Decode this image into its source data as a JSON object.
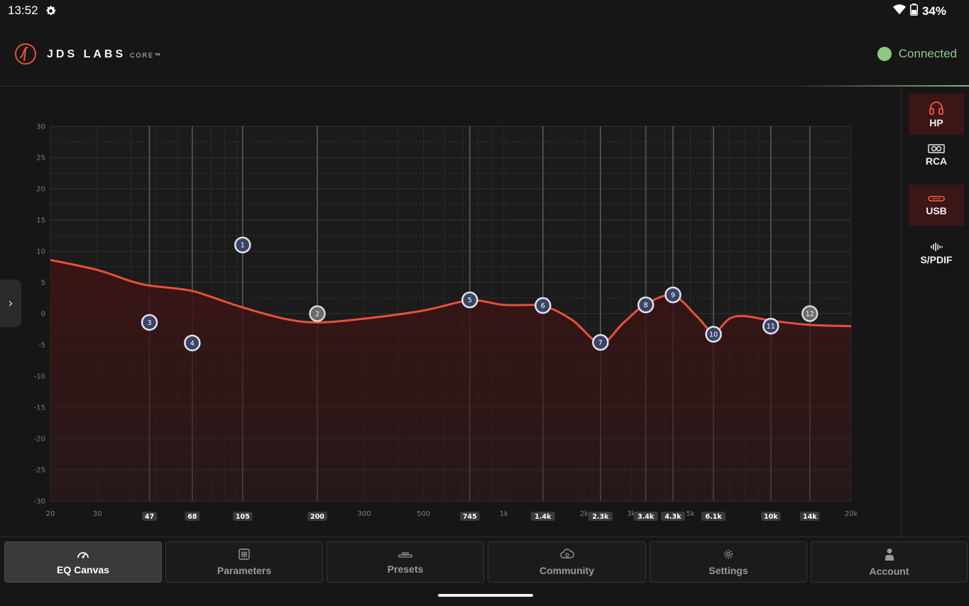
{
  "status_bar": {
    "time": "13:52",
    "battery": "34%",
    "icons": [
      "gear-icon",
      "wifi-icon",
      "battery-icon"
    ]
  },
  "header": {
    "brand": "JDS LABS",
    "product": "CORE™",
    "connection_status": "Connected",
    "colors": {
      "accent": "#e8503a",
      "connected": "#8bc97f"
    }
  },
  "outputs": [
    {
      "label": "HP",
      "icon": "headphones-icon",
      "active": true
    },
    {
      "label": "RCA",
      "icon": "rca-icon",
      "active": false
    },
    {
      "label": "USB",
      "icon": "usb-icon",
      "active": true
    },
    {
      "label": "S/PDIF",
      "icon": "spdif-icon",
      "active": false
    }
  ],
  "sidebar_toggle": {
    "label": "›",
    "icon": "chevron-right-icon"
  },
  "chart_data": {
    "type": "line",
    "title": "",
    "xlabel": "",
    "ylabel": "",
    "x_scale": "log",
    "xlim": [
      20,
      20000
    ],
    "ylim": [
      -30,
      30
    ],
    "grid": true,
    "x_ticks": [
      20,
      30,
      300,
      500,
      "1k",
      "2k",
      "3k",
      "5k",
      "20k"
    ],
    "y_ticks": [
      30,
      25,
      20,
      15,
      10,
      5,
      0,
      -5,
      -10,
      -15,
      -20,
      -25,
      -30
    ],
    "bands": [
      {
        "id": "1",
        "freq_label": "105",
        "freq": 105,
        "gain": 11,
        "enabled": true
      },
      {
        "id": "2",
        "freq_label": "200",
        "freq": 200,
        "gain": 0,
        "enabled": false
      },
      {
        "id": "3",
        "freq_label": "47",
        "freq": 47,
        "gain": -1.4,
        "enabled": true
      },
      {
        "id": "4",
        "freq_label": "68",
        "freq": 68,
        "gain": -4.7,
        "enabled": true
      },
      {
        "id": "5",
        "freq_label": "745",
        "freq": 745,
        "gain": 2.2,
        "enabled": true
      },
      {
        "id": "6",
        "freq_label": "1.4k",
        "freq": 1400,
        "gain": 1.3,
        "enabled": true
      },
      {
        "id": "7",
        "freq_label": "2.3k",
        "freq": 2300,
        "gain": -4.6,
        "enabled": true
      },
      {
        "id": "8",
        "freq_label": "3.4k",
        "freq": 3400,
        "gain": 1.4,
        "enabled": true
      },
      {
        "id": "9",
        "freq_label": "4.3k",
        "freq": 4300,
        "gain": 3,
        "enabled": true
      },
      {
        "id": "10",
        "freq_label": "6.1k",
        "freq": 6100,
        "gain": -3.3,
        "enabled": true
      },
      {
        "id": "11",
        "freq_label": "10k",
        "freq": 10000,
        "gain": -2,
        "enabled": true
      },
      {
        "id": "12",
        "freq_label": "14k",
        "freq": 14000,
        "gain": 0,
        "enabled": false
      }
    ],
    "response_curve": [
      [
        20,
        8.6
      ],
      [
        30,
        7
      ],
      [
        40,
        5.2
      ],
      [
        47,
        4.5
      ],
      [
        60,
        4
      ],
      [
        70,
        3.5
      ],
      [
        85,
        2.3
      ],
      [
        105,
        1
      ],
      [
        150,
        -0.8
      ],
      [
        200,
        -1.4
      ],
      [
        300,
        -0.8
      ],
      [
        500,
        0.5
      ],
      [
        745,
        2.1
      ],
      [
        1000,
        1.4
      ],
      [
        1400,
        1.2
      ],
      [
        1800,
        -1
      ],
      [
        2300,
        -4.7
      ],
      [
        2800,
        -1.5
      ],
      [
        3400,
        1.5
      ],
      [
        4300,
        2.9
      ],
      [
        5300,
        -0.5
      ],
      [
        6100,
        -3
      ],
      [
        7000,
        -0.8
      ],
      [
        8000,
        -0.4
      ],
      [
        10000,
        -1.1
      ],
      [
        14000,
        -1.8
      ],
      [
        20000,
        -2
      ]
    ],
    "line_color": "#e8503a",
    "fill_color": "#3a1414"
  },
  "nav": {
    "items": [
      {
        "label": "EQ Canvas",
        "icon": "gauge-icon",
        "active": true
      },
      {
        "label": "Parameters",
        "icon": "grid-icon",
        "active": false
      },
      {
        "label": "Presets",
        "icon": "sliders-icon",
        "active": false
      },
      {
        "label": "Community",
        "icon": "cloud-icon",
        "active": false
      },
      {
        "label": "Settings",
        "icon": "gear-icon",
        "active": false
      },
      {
        "label": "Account",
        "icon": "user-icon",
        "active": false
      }
    ]
  }
}
